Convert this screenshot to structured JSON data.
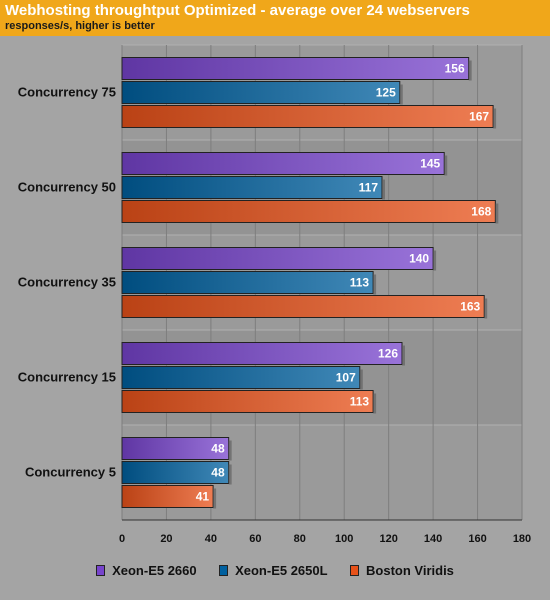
{
  "chart_data": {
    "type": "bar",
    "orientation": "horizontal",
    "title": "Webhosting throughtput Optimized - average over 24 webservers",
    "subtitle": "responses/s, higher is better",
    "categories": [
      "Concurrency 75",
      "Concurrency 50",
      "Concurrency 35",
      "Concurrency 15",
      "Concurrency 5"
    ],
    "series": [
      {
        "name": "Xeon-E5 2660",
        "color": "#7744cc",
        "values": [
          156,
          145,
          140,
          126,
          48
        ]
      },
      {
        "name": "Xeon-E5 2650L",
        "color": "#00609f",
        "values": [
          125,
          117,
          113,
          107,
          48
        ]
      },
      {
        "name": "Boston Viridis",
        "color": "#e8521a",
        "values": [
          167,
          168,
          163,
          113,
          41
        ]
      }
    ],
    "xlim": [
      0,
      180
    ],
    "xticks": [
      0,
      20,
      40,
      60,
      80,
      100,
      120,
      140,
      160,
      180
    ],
    "grid": true,
    "legend_position": "bottom"
  }
}
